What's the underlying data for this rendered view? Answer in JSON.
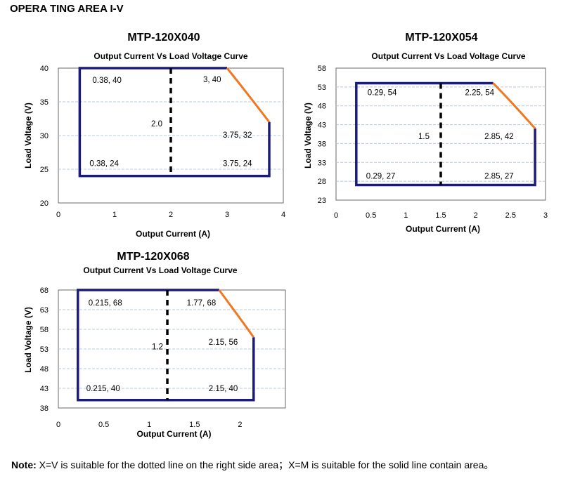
{
  "page_title": "OPERA TING AREA I-V",
  "note": {
    "label": "Note:",
    "text": " X=V is suitable for the dotted line on the right side area；X=M is suitable for the solid line contain area。"
  },
  "colors": {
    "frame": "#1a1a80",
    "curve": "#f07820",
    "grid": "#b9c8d8",
    "divider": "#000000"
  },
  "chart_data": [
    {
      "type": "line",
      "title": "MTP-120X040",
      "subtitle": "Output Current Vs Load Voltage Curve",
      "xlabel": "Output Current (A)",
      "ylabel": "Load Voltage (V)",
      "xlim": [
        0,
        4
      ],
      "ylim": [
        20,
        40
      ],
      "xticks": [
        "0",
        "1",
        "2",
        "3",
        "4"
      ],
      "yticks": [
        "20",
        "25",
        "30",
        "35",
        "40"
      ],
      "grid": "horizontal",
      "divider_x": 2.0,
      "divider_label": "2.0",
      "region": [
        [
          0.38,
          24
        ],
        [
          0.38,
          40
        ],
        [
          3,
          40
        ],
        [
          3.75,
          32
        ],
        [
          3.75,
          24
        ]
      ],
      "curve": [
        [
          3,
          40
        ],
        [
          3.75,
          32
        ]
      ],
      "labels": [
        "0.38, 40",
        "3, 40",
        "3.75, 32",
        "0.38, 24",
        "3.75, 24"
      ]
    },
    {
      "type": "line",
      "title": "MTP-120X054",
      "subtitle": "Output Current Vs Load Voltage Curve",
      "xlabel": "Output Current (A)",
      "ylabel": "Load Voltage (V)",
      "xlim": [
        0,
        3
      ],
      "ylim": [
        23,
        58
      ],
      "xticks": [
        "0",
        "0.5",
        "1",
        "1.5",
        "2",
        "2.5",
        "3"
      ],
      "yticks": [
        "23",
        "28",
        "33",
        "38",
        "43",
        "48",
        "53",
        "58"
      ],
      "grid": "horizontal",
      "divider_x": 1.5,
      "divider_label": "1.5",
      "region": [
        [
          0.29,
          27
        ],
        [
          0.29,
          54
        ],
        [
          2.25,
          54
        ],
        [
          2.85,
          42
        ],
        [
          2.85,
          27
        ]
      ],
      "curve": [
        [
          2.25,
          54
        ],
        [
          2.85,
          42
        ]
      ],
      "labels": [
        "0.29, 54",
        "2.25, 54",
        "2.85, 42",
        "0.29, 27",
        "2.85, 27"
      ]
    },
    {
      "type": "line",
      "title": "MTP-120X068",
      "subtitle": "Output Current Vs Load Voltage Curve",
      "xlabel": "Output Current (A)",
      "ylabel": "Load Voltage (V)",
      "xlim": [
        0,
        2.5
      ],
      "ylim": [
        38,
        68
      ],
      "xticks": [
        "0",
        "0.5",
        "1",
        "1.5",
        "2"
      ],
      "yticks": [
        "38",
        "43",
        "48",
        "53",
        "58",
        "63",
        "68"
      ],
      "grid": "horizontal",
      "divider_x": 1.2,
      "divider_label": "1.2",
      "region": [
        [
          0.215,
          40
        ],
        [
          0.215,
          68
        ],
        [
          1.77,
          68
        ],
        [
          2.15,
          56
        ],
        [
          2.15,
          40
        ]
      ],
      "curve": [
        [
          1.77,
          68
        ],
        [
          2.15,
          56
        ]
      ],
      "labels": [
        "0.215, 68",
        "1.77, 68",
        "2.15, 56",
        "0.215, 40",
        "2.15, 40"
      ]
    }
  ]
}
